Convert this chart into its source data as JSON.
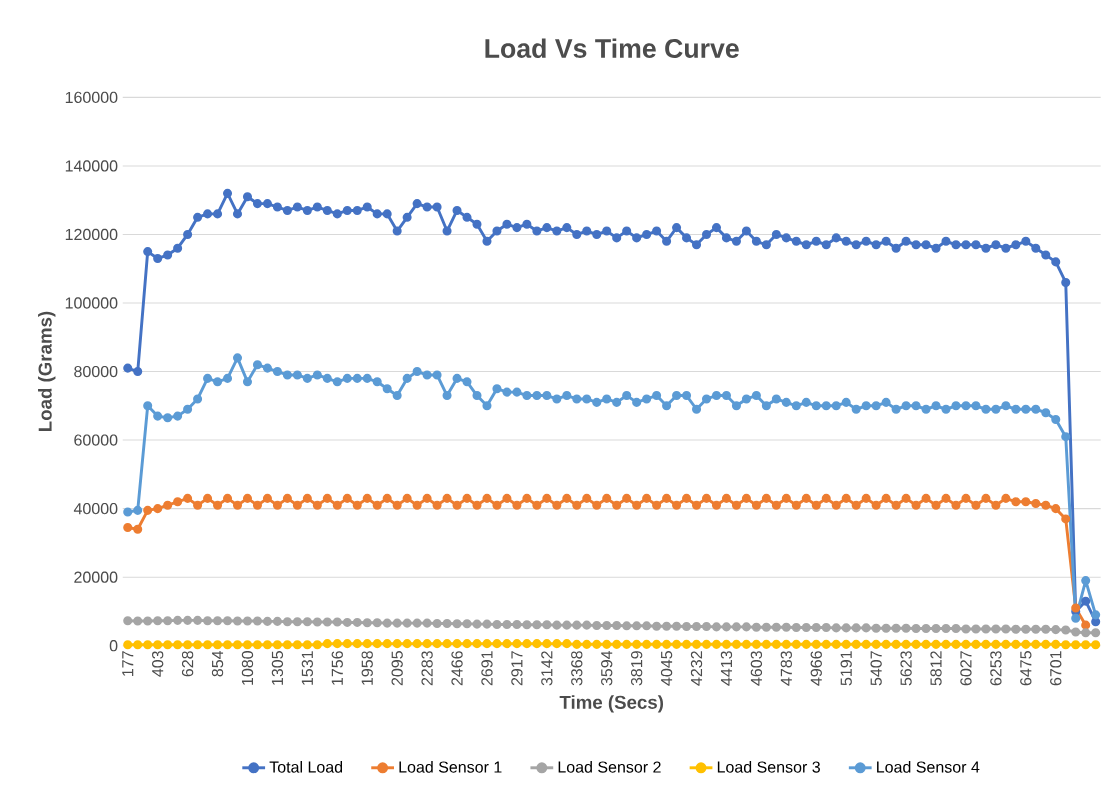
{
  "chart_data": {
    "type": "line",
    "title": "Load Vs Time Curve",
    "xlabel": "Time (Secs)",
    "ylabel": "Load (Grams)",
    "categories": [
      "177",
      null,
      null,
      "403",
      null,
      null,
      "628",
      null,
      null,
      "854",
      null,
      null,
      "1080",
      null,
      null,
      "1305",
      null,
      null,
      "1531",
      null,
      null,
      "1756",
      null,
      null,
      "1958",
      null,
      null,
      "2095",
      null,
      null,
      "2283",
      null,
      null,
      "2466",
      null,
      null,
      "2691",
      null,
      null,
      "2917",
      null,
      null,
      "3142",
      null,
      null,
      "3368",
      null,
      null,
      "3594",
      null,
      null,
      "3819",
      null,
      null,
      "4045",
      null,
      null,
      "4232",
      null,
      null,
      "4413",
      null,
      null,
      "4603",
      null,
      null,
      "4783",
      null,
      null,
      "4966",
      null,
      null,
      "5191",
      null,
      null,
      "5407",
      null,
      null,
      "5623",
      null,
      null,
      "5812",
      null,
      null,
      "6027",
      null,
      null,
      "6253",
      null,
      null,
      "6475",
      null,
      null,
      "6701",
      null,
      null,
      null,
      null
    ],
    "series": [
      {
        "name": "Total Load",
        "color": "#4472c4",
        "values": [
          81000,
          80000,
          115000,
          113000,
          114000,
          116000,
          120000,
          125000,
          126000,
          126000,
          132000,
          126000,
          131000,
          129000,
          129000,
          128000,
          127000,
          128000,
          127000,
          128000,
          127000,
          126000,
          127000,
          127000,
          128000,
          126000,
          126000,
          121000,
          125000,
          129000,
          128000,
          128000,
          121000,
          127000,
          125000,
          123000,
          118000,
          121000,
          123000,
          122000,
          123000,
          121000,
          122000,
          121000,
          122000,
          120000,
          121000,
          120000,
          121000,
          119000,
          121000,
          119000,
          120000,
          121000,
          118000,
          122000,
          119000,
          117000,
          120000,
          122000,
          119000,
          118000,
          121000,
          118000,
          117000,
          120000,
          119000,
          118000,
          117000,
          118000,
          117000,
          119000,
          118000,
          117000,
          118000,
          117000,
          118000,
          116000,
          118000,
          117000,
          117000,
          116000,
          118000,
          117000,
          117000,
          117000,
          116000,
          117000,
          116000,
          117000,
          118000,
          116000,
          114000,
          112000,
          106000,
          10000,
          13000,
          7000
        ]
      },
      {
        "name": "Load Sensor 1",
        "color": "#ed7d31",
        "values": [
          34500,
          34000,
          39500,
          40000,
          41000,
          42000,
          43000,
          41000,
          43000,
          41000,
          43000,
          41000,
          43000,
          41000,
          43000,
          41000,
          43000,
          41000,
          43000,
          41000,
          43000,
          41000,
          43000,
          41000,
          43000,
          41000,
          43000,
          41000,
          43000,
          41000,
          43000,
          41000,
          43000,
          41000,
          43000,
          41000,
          43000,
          41000,
          43000,
          41000,
          43000,
          41000,
          43000,
          41000,
          43000,
          41000,
          43000,
          41000,
          43000,
          41000,
          43000,
          41000,
          43000,
          41000,
          43000,
          41000,
          43000,
          41000,
          43000,
          41000,
          43000,
          41000,
          43000,
          41000,
          43000,
          41000,
          43000,
          41000,
          43000,
          41000,
          43000,
          41000,
          43000,
          41000,
          43000,
          41000,
          43000,
          41000,
          43000,
          41000,
          43000,
          41000,
          43000,
          41000,
          43000,
          41000,
          43000,
          41000,
          43000,
          42000,
          42000,
          41500,
          41000,
          40000,
          37000,
          11000,
          6000,
          null
        ]
      },
      {
        "name": "Load Sensor 2",
        "color": "#a5a5a5",
        "values": [
          7300,
          7200,
          7200,
          7300,
          7300,
          7400,
          7400,
          7400,
          7300,
          7300,
          7300,
          7200,
          7200,
          7200,
          7100,
          7100,
          7000,
          7000,
          7000,
          6900,
          6900,
          6900,
          6800,
          6800,
          6700,
          6700,
          6600,
          6600,
          6600,
          6600,
          6600,
          6500,
          6500,
          6400,
          6400,
          6300,
          6300,
          6200,
          6200,
          6200,
          6100,
          6100,
          6100,
          6000,
          6000,
          6000,
          6000,
          5900,
          5900,
          5900,
          5800,
          5800,
          5800,
          5700,
          5700,
          5700,
          5600,
          5600,
          5600,
          5500,
          5500,
          5500,
          5500,
          5400,
          5400,
          5400,
          5400,
          5300,
          5300,
          5300,
          5300,
          5200,
          5200,
          5200,
          5200,
          5100,
          5100,
          5100,
          5100,
          5000,
          5000,
          5000,
          5000,
          5000,
          4900,
          4900,
          4900,
          4900,
          4900,
          4800,
          4800,
          4800,
          4800,
          4700,
          4600,
          4000,
          3800,
          3800
        ]
      },
      {
        "name": "Load Sensor 3",
        "color": "#ffc000",
        "values": [
          300,
          300,
          300,
          300,
          300,
          300,
          300,
          300,
          300,
          300,
          300,
          300,
          300,
          300,
          300,
          300,
          300,
          300,
          300,
          300,
          600,
          600,
          600,
          600,
          600,
          600,
          600,
          600,
          600,
          600,
          600,
          600,
          600,
          600,
          600,
          600,
          600,
          600,
          600,
          600,
          600,
          600,
          600,
          600,
          600,
          400,
          400,
          400,
          400,
          400,
          400,
          400,
          400,
          400,
          400,
          400,
          400,
          400,
          400,
          400,
          400,
          400,
          400,
          400,
          400,
          400,
          400,
          400,
          400,
          400,
          400,
          400,
          400,
          400,
          400,
          400,
          400,
          400,
          400,
          400,
          400,
          400,
          400,
          400,
          400,
          400,
          400,
          400,
          400,
          400,
          400,
          400,
          400,
          400,
          300,
          300,
          300,
          300
        ]
      },
      {
        "name": "Load Sensor 4",
        "color": "#5b9bd5",
        "values": [
          39000,
          39500,
          70000,
          67000,
          66500,
          67000,
          69000,
          72000,
          78000,
          77000,
          78000,
          84000,
          77000,
          82000,
          81000,
          80000,
          79000,
          79000,
          78000,
          79000,
          78000,
          77000,
          78000,
          78000,
          78000,
          77000,
          75000,
          73000,
          78000,
          80000,
          79000,
          79000,
          73000,
          78000,
          77000,
          73000,
          70000,
          75000,
          74000,
          74000,
          73000,
          73000,
          73000,
          72000,
          73000,
          72000,
          72000,
          71000,
          72000,
          71000,
          73000,
          71000,
          72000,
          73000,
          70000,
          73000,
          73000,
          69000,
          72000,
          73000,
          73000,
          70000,
          72000,
          73000,
          70000,
          72000,
          71000,
          70000,
          71000,
          70000,
          70000,
          70000,
          71000,
          69000,
          70000,
          70000,
          71000,
          69000,
          70000,
          70000,
          69000,
          70000,
          69000,
          70000,
          70000,
          70000,
          69000,
          69000,
          70000,
          69000,
          69000,
          69000,
          68000,
          66000,
          61000,
          8000,
          19000,
          9000
        ]
      }
    ],
    "ylim": [
      0,
      160000
    ],
    "yticks": [
      0,
      20000,
      40000,
      60000,
      80000,
      100000,
      120000,
      140000,
      160000
    ],
    "grid": "y",
    "legend": "bottom",
    "marker": "circle",
    "line_style": "solid"
  }
}
